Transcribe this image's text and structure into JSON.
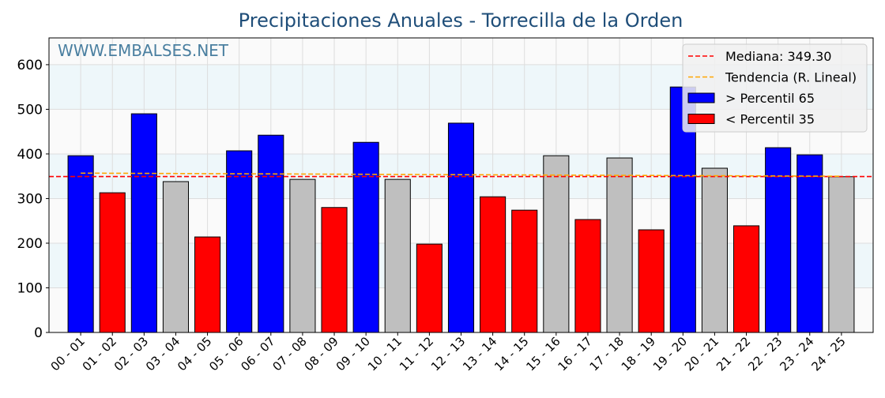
{
  "chart_data": {
    "type": "bar",
    "title": "Precipitaciones Anuales - Torrecilla de la Orden",
    "watermark": "WWW.EMBALSES.NET",
    "xlabel": "",
    "ylabel": "",
    "ylim": [
      0,
      660
    ],
    "yticks": [
      0,
      100,
      200,
      300,
      400,
      500,
      600
    ],
    "grid": true,
    "legend_position": "top-right",
    "categories": [
      "00 - 01",
      "01 - 02",
      "02 - 03",
      "03 - 04",
      "04 - 05",
      "05 - 06",
      "06 - 07",
      "07 - 08",
      "08 - 09",
      "09 - 10",
      "10 - 11",
      "11 - 12",
      "12 - 13",
      "13 - 14",
      "14 - 15",
      "15 - 16",
      "16 - 17",
      "17 - 18",
      "18 - 19",
      "19 - 20",
      "20 - 21",
      "21 - 22",
      "22 - 23",
      "23 - 24",
      "24 - 25"
    ],
    "values": [
      396,
      313,
      490,
      338,
      214,
      407,
      442,
      343,
      280,
      426,
      343,
      198,
      469,
      304,
      274,
      396,
      253,
      391,
      230,
      550,
      368,
      239,
      414,
      398,
      349
    ],
    "classes": [
      "high",
      "low",
      "high",
      "mid",
      "low",
      "high",
      "high",
      "mid",
      "low",
      "high",
      "mid",
      "low",
      "high",
      "low",
      "low",
      "mid",
      "low",
      "mid",
      "low",
      "high",
      "mid",
      "low",
      "high",
      "high",
      "mid"
    ],
    "median": 349.3,
    "trend": {
      "start": 357,
      "end": 350
    },
    "legend": [
      {
        "label": "Mediana: 349.30",
        "kind": "median"
      },
      {
        "label": "Tendencia (R. Lineal)",
        "kind": "trend"
      },
      {
        "label": " > Percentil 65",
        "kind": "high"
      },
      {
        "label": " < Percentil 35",
        "kind": "low"
      }
    ],
    "colors": {
      "high": "#0000ff",
      "low": "#ff0000",
      "mid": "#bfbfbf",
      "median": "#ff0000",
      "trend": "#ffa500",
      "title": "#1f4e79",
      "watermark": "#4a7fa0"
    }
  }
}
